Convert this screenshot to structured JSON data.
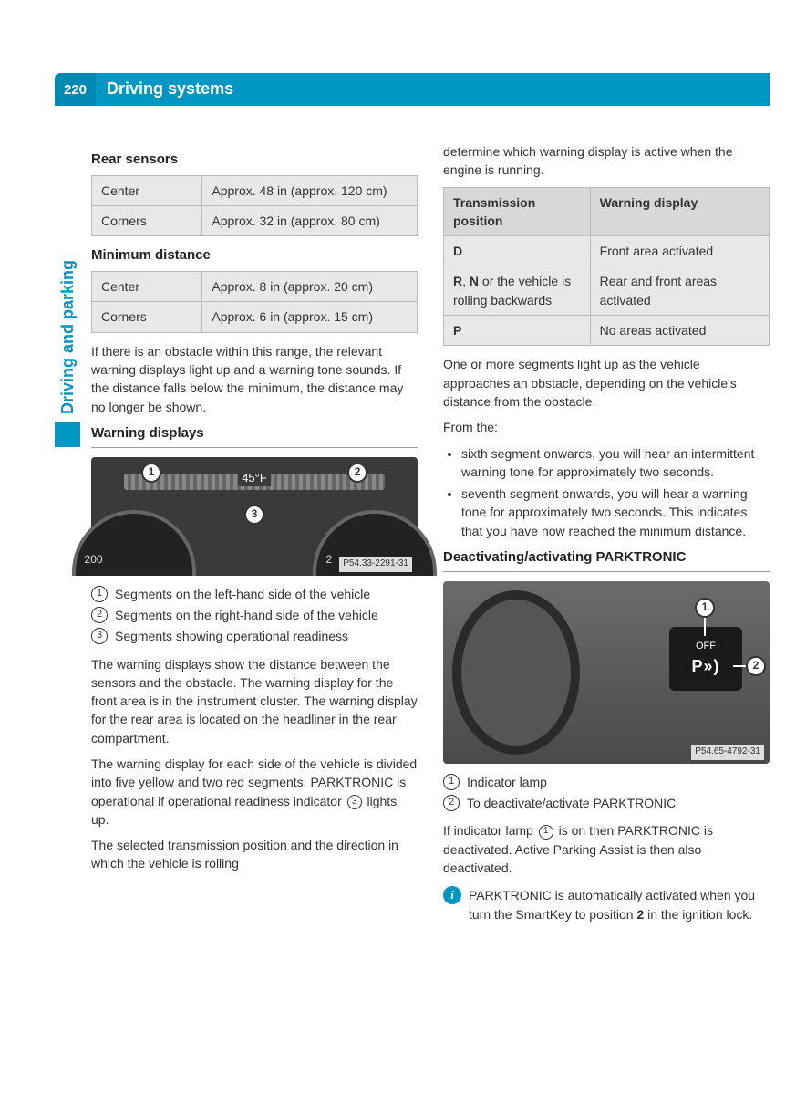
{
  "header": {
    "page_number": "220",
    "title": "Driving systems"
  },
  "side_tab": "Driving and parking",
  "left": {
    "rear_sensors": {
      "heading": "Rear sensors",
      "rows": [
        {
          "label": "Center",
          "value": "Approx. 48 in (approx. 120 cm)"
        },
        {
          "label": "Corners",
          "value": "Approx. 32 in (approx. 80 cm)"
        }
      ]
    },
    "min_distance": {
      "heading": "Minimum distance",
      "rows": [
        {
          "label": "Center",
          "value": "Approx. 8 in (approx. 20 cm)"
        },
        {
          "label": "Corners",
          "value": "Approx. 6 in (approx. 15 cm)"
        }
      ]
    },
    "para1": "If there is an obstacle within this range, the relevant warning displays light up and a warning tone sounds. If the distance falls below the minimum, the distance may no longer be shown.",
    "warning_heading": "Warning displays",
    "fig1": {
      "ref": "P54.33-2291-31",
      "temp": "45°F",
      "gauge_left": "200",
      "gauge_right": "2"
    },
    "legend1": [
      {
        "n": "1",
        "text": "Segments on the left-hand side of the vehicle"
      },
      {
        "n": "2",
        "text": "Segments on the right-hand side of the vehicle"
      },
      {
        "n": "3",
        "text": "Segments showing operational readiness"
      }
    ],
    "para2": "The warning displays show the distance between the sensors and the obstacle. The warning display for the front area is in the instrument cluster. The warning display for the rear area is located on the headliner in the rear compartment.",
    "para3_a": "The warning display for each side of the vehicle is divided into five yellow and two red segments. PARKTRONIC is operational if operational readiness indicator ",
    "para3_b": " lights up.",
    "para4": "The selected transmission position and the direction in which the vehicle is rolling"
  },
  "right": {
    "para1": "determine which warning display is active when the engine is running.",
    "trans_table": {
      "head1": "Transmission position",
      "head2": "Warning display",
      "rows": [
        {
          "c1_html": "<b>D</b>",
          "c2": "Front area activated"
        },
        {
          "c1_html": "<b>R</b>, <b>N</b> or the vehicle is rolling backwards",
          "c2": "Rear and front areas activated"
        },
        {
          "c1_html": "<b>P</b>",
          "c2": "No areas activated"
        }
      ]
    },
    "para2": "One or more segments light up as the vehicle approaches an obstacle, depending on the vehicle's distance from the obstacle.",
    "from_the": "From the:",
    "bullets": [
      "sixth segment onwards, you will hear an intermittent warning tone for approximately two seconds.",
      "seventh segment onwards, you will hear a warning tone for approximately two seconds. This indicates that you have now reached the minimum distance."
    ],
    "deact_heading": "Deactivating/activating PARKTRONIC",
    "fig2": {
      "ref": "P54.65-4792-31",
      "btn_off": "OFF",
      "btn_p": "P»)"
    },
    "legend2": [
      {
        "n": "1",
        "text": "Indicator lamp"
      },
      {
        "n": "2",
        "text": "To deactivate/activate PARKTRONIC"
      }
    ],
    "para3_a": "If indicator lamp ",
    "para3_b": " is on then PARKTRONIC is deactivated. Active Parking Assist is then also deactivated.",
    "info_a": "PARKTRONIC is automatically activated when you turn the SmartKey to position ",
    "info_bold": "2",
    "info_b": " in the ignition lock."
  }
}
